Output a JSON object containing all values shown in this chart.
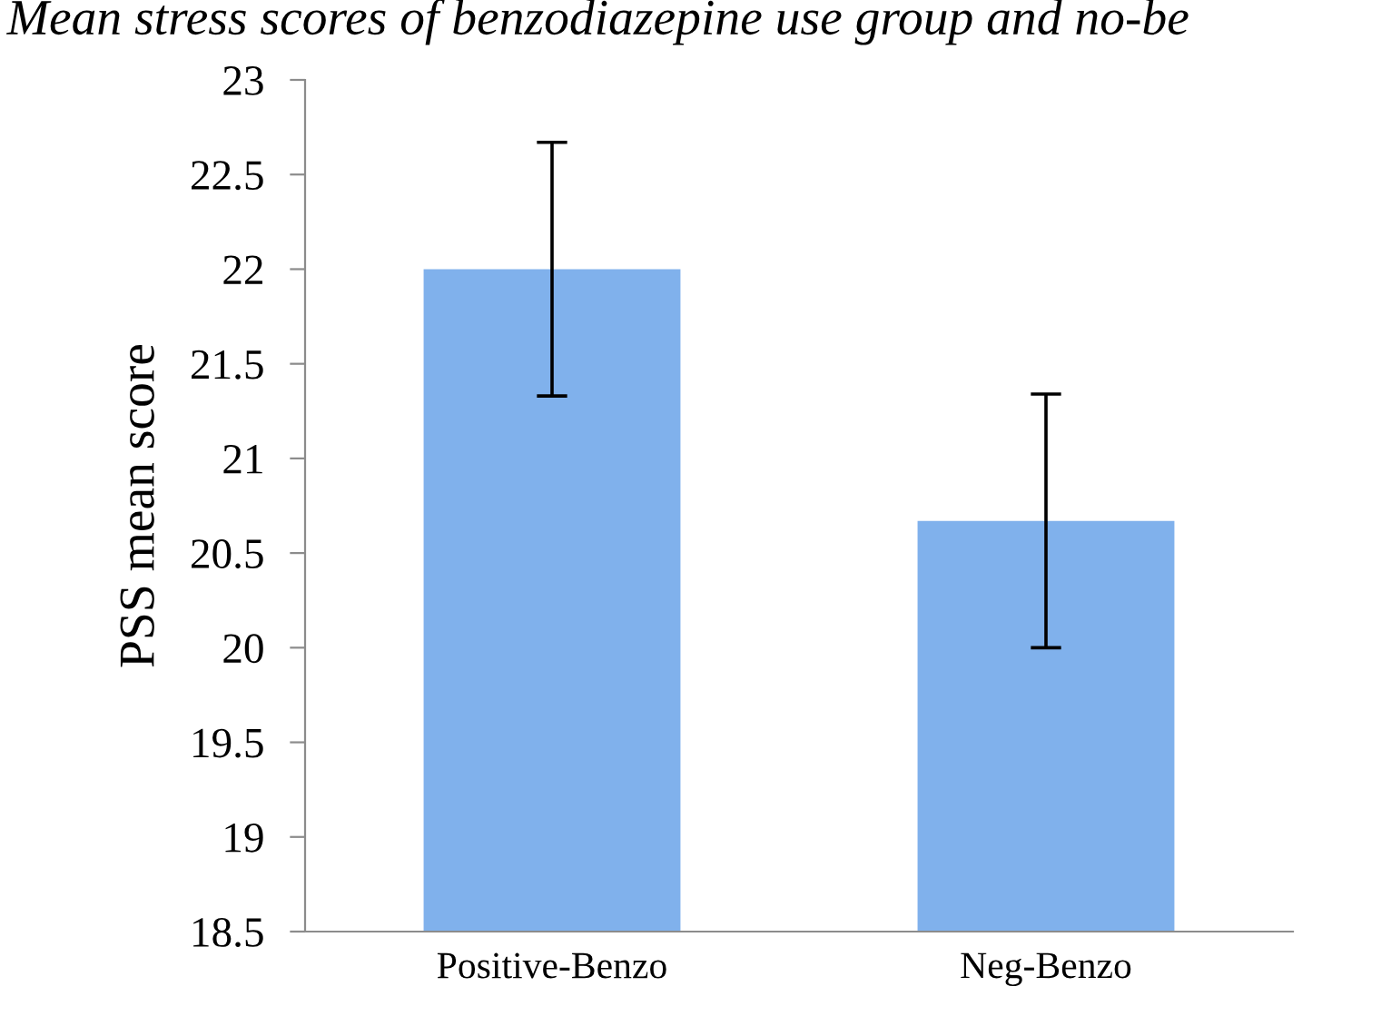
{
  "chart_data": {
    "type": "bar",
    "title": "Mean stress scores of benzodiazepine use group and no-be",
    "ylabel": "PSS mean score",
    "categories": [
      "Positive-Benzo",
      "Neg-Benzo"
    ],
    "values": [
      22.0,
      20.67
    ],
    "errors": [
      0.67,
      0.67
    ],
    "color": "#80b1ec",
    "ylim": [
      18.5,
      23
    ],
    "yticks": [
      18.5,
      19,
      19.5,
      20,
      20.5,
      21,
      21.5,
      22,
      22.5,
      23
    ],
    "grid": false,
    "legend": false
  }
}
